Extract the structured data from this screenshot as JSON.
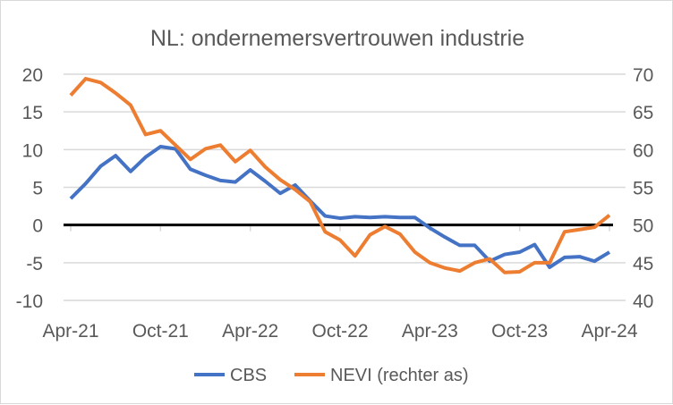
{
  "chart_data": {
    "type": "line",
    "title": "NL: ondernemersvertrouwen industrie",
    "x": [
      "Apr-21",
      "May-21",
      "Jun-21",
      "Jul-21",
      "Aug-21",
      "Sep-21",
      "Oct-21",
      "Nov-21",
      "Dec-21",
      "Jan-22",
      "Feb-22",
      "Mar-22",
      "Apr-22",
      "May-22",
      "Jun-22",
      "Jul-22",
      "Aug-22",
      "Sep-22",
      "Oct-22",
      "Nov-22",
      "Dec-22",
      "Jan-23",
      "Feb-23",
      "Mar-23",
      "Apr-23",
      "May-23",
      "Jun-23",
      "Jul-23",
      "Aug-23",
      "Sep-23",
      "Oct-23",
      "Nov-23",
      "Dec-23",
      "Jan-24",
      "Feb-24",
      "Mar-24",
      "Apr-24"
    ],
    "xticks": [
      "Apr-21",
      "Oct-21",
      "Apr-22",
      "Oct-22",
      "Apr-23",
      "Oct-23",
      "Apr-24"
    ],
    "yticks_left": [
      "20",
      "15",
      "10",
      "5",
      "0",
      "-5",
      "-10"
    ],
    "yticks_right": [
      "70",
      "65",
      "60",
      "55",
      "50",
      "45",
      "40"
    ],
    "ylim_left": [
      -10,
      20
    ],
    "ylim_right": [
      40,
      70
    ],
    "legend_position": "bottom",
    "series": [
      {
        "name": "CBS",
        "axis": "left",
        "color": "#4472c4",
        "values": [
          3.5,
          5.5,
          7.8,
          9.2,
          7.1,
          9.0,
          10.4,
          10.1,
          7.4,
          6.6,
          5.9,
          5.7,
          7.3,
          5.8,
          4.2,
          5.3,
          3.2,
          1.2,
          0.9,
          1.1,
          1.0,
          1.1,
          1.0,
          1.0,
          -0.4,
          -1.6,
          -2.7,
          -2.7,
          -4.8,
          -3.9,
          -3.6,
          -2.6,
          -5.6,
          -4.3,
          -4.2,
          -4.8,
          -3.6
        ]
      },
      {
        "name": "NEVI (rechter as)",
        "axis": "right",
        "color": "#ed7d31",
        "values": [
          67.2,
          69.4,
          68.9,
          67.5,
          65.9,
          62.0,
          62.5,
          60.6,
          58.7,
          60.1,
          60.6,
          58.4,
          59.9,
          57.7,
          56.0,
          54.7,
          53.1,
          49.1,
          48.0,
          45.9,
          48.7,
          49.8,
          48.8,
          46.4,
          45.0,
          44.3,
          43.9,
          45.0,
          45.5,
          43.7,
          43.8,
          45.0,
          45.0,
          49.1,
          49.4,
          49.7,
          51.3
        ]
      }
    ]
  }
}
